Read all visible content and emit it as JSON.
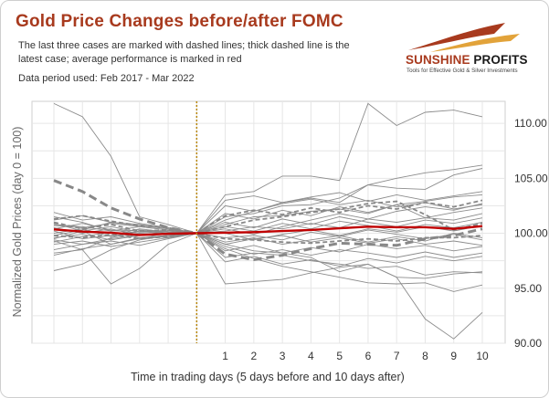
{
  "header": {
    "title": "Gold Price Changes before/after FOMC",
    "subtitle": "The last three cases are marked with dashed lines; thick dashed line is the latest case; average performance is marked in red",
    "period": "Data period used: Feb 2017 - Mar 2022"
  },
  "logo": {
    "name_part1": "SUNSHINE",
    "name_part2": " PROFITS",
    "tagline": "Tools for Effective Gold & Silver Investments"
  },
  "colors": {
    "average": "#c00000",
    "cases": "#8c8c8c",
    "event_line": "#b8860b",
    "accent": "#a83a1e"
  },
  "chart_data": {
    "type": "line",
    "title": "Gold Price Changes before/after FOMC",
    "xlabel": "Time in trading days  (5 days before and 10 days after)",
    "ylabel": "Normalized Gold Prices (day 0 = 100)",
    "x": [
      -5,
      -4,
      -3,
      -2,
      -1,
      0,
      1,
      2,
      3,
      4,
      5,
      6,
      7,
      8,
      9,
      10
    ],
    "x_tick_labels": [
      "1",
      "2",
      "3",
      "4",
      "5",
      "6",
      "7",
      "8",
      "9",
      "10"
    ],
    "ylim": [
      90,
      112
    ],
    "y_ticks": [
      90,
      95,
      100,
      105,
      110
    ],
    "y_tick_labels": [
      "90.00",
      "95.00",
      "100.00",
      "105.00",
      "110.00"
    ],
    "event_day": 0,
    "grid": true,
    "series_solid": [
      [
        111.8,
        110.6,
        107.0,
        101.5,
        100.8,
        100,
        97.8,
        98.2,
        98.0,
        97.5,
        97.2,
        96.8,
        97.0,
        96.2,
        96.5,
        96.4
      ],
      [
        99.5,
        100.2,
        99.0,
        99.6,
        99.8,
        100,
        103.5,
        103.8,
        105.2,
        105.2,
        104.8,
        111.8,
        109.8,
        111.0,
        111.2,
        110.6
      ],
      [
        98.2,
        98.5,
        99.6,
        100.2,
        100.1,
        100,
        101.2,
        102.0,
        102.8,
        103.2,
        102.8,
        104.4,
        105.0,
        105.5,
        105.8,
        106.2
      ],
      [
        96.6,
        97.2,
        98.5,
        99.4,
        99.8,
        100,
        99.0,
        98.4,
        98.2,
        97.8,
        96.5,
        97.2,
        96.0,
        92.2,
        90.4,
        92.8
      ],
      [
        100.8,
        100.6,
        100.2,
        100.3,
        100.1,
        100,
        101.5,
        101.8,
        102.5,
        102.6,
        103.2,
        104.4,
        104.1,
        104.0,
        105.3,
        105.9
      ],
      [
        101.5,
        101.0,
        100.2,
        100.6,
        100.3,
        100,
        98.6,
        97.7,
        97.0,
        96.5,
        96.0,
        95.5,
        95.4,
        95.5,
        94.7,
        95.3
      ],
      [
        99.3,
        98.5,
        95.4,
        96.8,
        99.0,
        100,
        95.4,
        95.6,
        95.8,
        96.4,
        96.9,
        97.2,
        96.0,
        95.9,
        96.3,
        96.5
      ],
      [
        99.8,
        100.3,
        101.0,
        100.8,
        100.4,
        100,
        100.8,
        101.5,
        101.6,
        102.0,
        102.2,
        101.8,
        102.6,
        102.9,
        103.3,
        103.5
      ],
      [
        100.7,
        100.5,
        100.9,
        100.6,
        100.3,
        100,
        100.2,
        100.6,
        100.4,
        100.9,
        100.5,
        101.3,
        101.0,
        101.4,
        101.2,
        101.8
      ],
      [
        99.6,
        99.9,
        99.4,
        99.8,
        99.9,
        100,
        99.2,
        99.6,
        99.0,
        99.4,
        99.8,
        99.2,
        99.7,
        99.3,
        100.0,
        99.6
      ],
      [
        100.2,
        99.5,
        99.8,
        100.4,
        100.1,
        100,
        101.8,
        101.3,
        102.1,
        101.6,
        102.4,
        101.9,
        102.6,
        101.4,
        101.9,
        102.3
      ],
      [
        99.0,
        99.3,
        98.8,
        99.2,
        99.6,
        100,
        98.4,
        98.9,
        98.2,
        98.7,
        98.3,
        99.0,
        98.6,
        98.9,
        98.4,
        98.8
      ],
      [
        100.4,
        100.9,
        100.3,
        100.0,
        100.2,
        100,
        100.6,
        100.2,
        100.9,
        100.4,
        101.1,
        100.7,
        100.2,
        100.8,
        100.5,
        101.0
      ],
      [
        101.9,
        101.2,
        101.5,
        100.9,
        100.5,
        100,
        99.6,
        99.8,
        99.4,
        100.1,
        99.7,
        100.3,
        99.9,
        99.5,
        99.9,
        99.4
      ],
      [
        98.5,
        99.0,
        99.3,
        98.9,
        99.5,
        100,
        100.4,
        99.9,
        100.6,
        101.2,
        101.8,
        101.3,
        102.0,
        102.4,
        102.1,
        102.7
      ],
      [
        100.0,
        100.4,
        99.7,
        100.2,
        100.0,
        100,
        97.4,
        97.9,
        97.2,
        97.6,
        97.0,
        97.7,
        97.3,
        97.9,
        97.5,
        97.9
      ],
      [
        99.2,
        99.7,
        100.1,
        99.6,
        99.8,
        100,
        102.5,
        102.0,
        102.7,
        103.1,
        102.6,
        103.0,
        102.4,
        102.8,
        102.2,
        102.6
      ],
      [
        100.9,
        100.2,
        100.6,
        100.1,
        100.3,
        100,
        99.0,
        99.5,
        99.8,
        99.2,
        99.6,
        99.1,
        99.5,
        99.0,
        99.3,
        98.9
      ],
      [
        98.0,
        98.6,
        99.0,
        99.5,
        99.7,
        100,
        101.0,
        100.5,
        101.3,
        100.8,
        101.5,
        101.0,
        100.6,
        101.2,
        100.9,
        101.4
      ],
      [
        101.2,
        101.6,
        101.0,
        100.7,
        100.4,
        100,
        100.0,
        99.4,
        99.9,
        100.3,
        99.8,
        100.4,
        100.1,
        100.6,
        100.2,
        100.7
      ],
      [
        100.5,
        100.0,
        100.4,
        99.8,
        100.2,
        100,
        103.0,
        103.4,
        102.8,
        103.3,
        103.7,
        102.9,
        103.5,
        103.0,
        103.4,
        103.8
      ],
      [
        99.4,
        99.0,
        99.5,
        99.9,
        99.6,
        100,
        98.8,
        98.1,
        98.5,
        98.0,
        98.5,
        98.2,
        97.8,
        98.3,
        97.8,
        98.2
      ]
    ],
    "series_dashed": [
      [
        101.0,
        100.4,
        100.8,
        100.2,
        100.3,
        100,
        101.6,
        102.1,
        101.7,
        102.3,
        101.9,
        102.5,
        102.2,
        102.8,
        102.4,
        103.0
      ],
      [
        101.3,
        101.6,
        101.1,
        100.7,
        100.5,
        100,
        100.6,
        101.2,
        101.5,
        101.9,
        102.2,
        102.7,
        102.9,
        101.7,
        100.3,
        100.9
      ],
      [
        99.8,
        99.6,
        99.9,
        99.5,
        99.7,
        100,
        99.5,
        99.4,
        99.2,
        99.1,
        99.3,
        99.5,
        99.3,
        99.6,
        99.6,
        99.8
      ]
    ],
    "series_thick_dashed": [
      104.8,
      103.8,
      102.3,
      101.3,
      100.5,
      100,
      98.1,
      97.6,
      98.0,
      98.6,
      99.1,
      99.0,
      98.9,
      99.5,
      99.8,
      100.4
    ],
    "series_average": [
      100.35,
      100.15,
      100.05,
      99.85,
      99.95,
      100,
      100.05,
      100.1,
      100.2,
      100.3,
      100.45,
      100.6,
      100.55,
      100.55,
      100.4,
      100.65
    ]
  }
}
